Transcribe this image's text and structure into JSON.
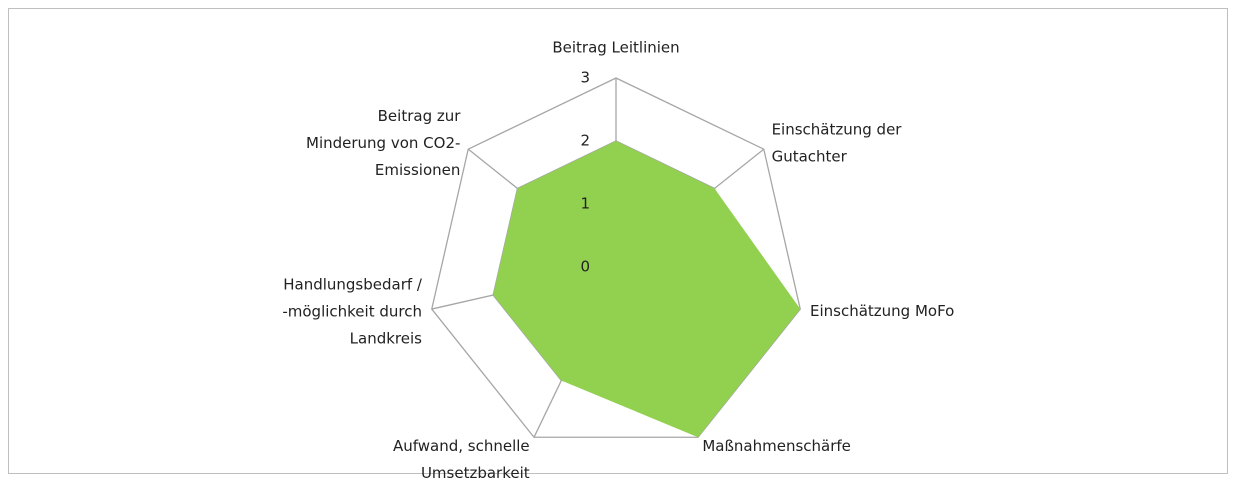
{
  "chart_data": {
    "type": "radar",
    "categories": [
      "Beitrag Leitlinien",
      "Einschätzung der\nGutachter",
      "Einschätzung MoFo",
      "Maßnahmenschärfe",
      "Aufwand, schnelle\nUmsetzbarkeit",
      "Handlungsbedarf /\n-möglichkeit durch\nLandkreis",
      "Beitrag zur\nMinderung von CO2-\nEmissionen"
    ],
    "values": [
      2,
      2,
      3,
      3,
      2,
      2,
      2
    ],
    "color": "#92d050",
    "ylim": [
      0,
      3
    ],
    "yticks": [
      0,
      1,
      2,
      3
    ],
    "grid": true
  }
}
